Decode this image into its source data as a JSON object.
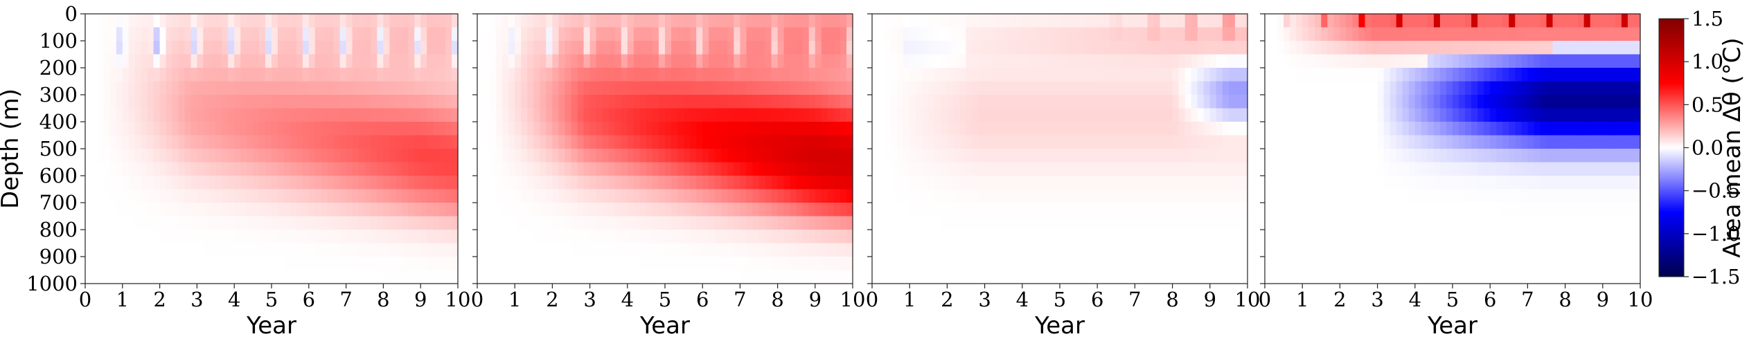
{
  "chart_data": {
    "type": "heatmap",
    "panels": [
      {
        "pattern": "weak-warm-deepening",
        "x_ticks": [
          "0",
          "1",
          "2",
          "3",
          "4",
          "5",
          "6",
          "7",
          "8",
          "9",
          "10"
        ],
        "xlabel": "Year",
        "ylabel": "Depth (m)",
        "y_ticks": [
          "0",
          "100",
          "200",
          "300",
          "400",
          "500",
          "600",
          "700",
          "800",
          "900",
          "1000"
        ],
        "xlim": [
          0,
          10
        ],
        "ylim": [
          0,
          1000
        ],
        "summary_values": {
          "max_warming_C": 0.55,
          "surface_cold_lobes_C": -0.25
        }
      },
      {
        "pattern": "strong-warm-deepening",
        "x_ticks": [
          "0",
          "1",
          "2",
          "3",
          "4",
          "5",
          "6",
          "7",
          "8",
          "9",
          "10"
        ],
        "xlabel": "Year",
        "ylabel": "",
        "y_ticks": [],
        "xlim": [
          0,
          10
        ],
        "ylim": [
          0,
          1000
        ],
        "summary_values": {
          "max_warming_C": 1.0,
          "surface_cold_lobes_C": -0.2
        }
      },
      {
        "pattern": "weak-mixed",
        "x_ticks": [
          "0",
          "1",
          "2",
          "3",
          "4",
          "5",
          "6",
          "7",
          "8",
          "9",
          "10"
        ],
        "xlabel": "Year",
        "ylabel": "",
        "y_ticks": [],
        "xlim": [
          0,
          10
        ],
        "ylim": [
          0,
          1000
        ],
        "summary_values": {
          "max_warming_C": 0.4,
          "max_cooling_C": -0.4
        }
      },
      {
        "pattern": "surface-warm-subsurface-cold",
        "x_ticks": [
          "0",
          "1",
          "2",
          "3",
          "4",
          "5",
          "6",
          "7",
          "8",
          "9",
          "10"
        ],
        "xlabel": "Year",
        "ylabel": "",
        "y_ticks": [],
        "xlim": [
          0,
          10
        ],
        "ylim": [
          0,
          1000
        ],
        "summary_values": {
          "max_warming_C": 1.2,
          "max_cooling_C": -1.2
        }
      }
    ],
    "colorbar": {
      "label": "Area mean Δθ (°C)",
      "ticks": [
        "1.5",
        "1.0",
        "0.5",
        "0.0",
        "−0.5",
        "−1.0",
        "−1.5"
      ],
      "tick_values": [
        1.5,
        1.0,
        0.5,
        0.0,
        -0.5,
        -1.0,
        -1.5
      ],
      "range": [
        -1.5,
        1.5
      ],
      "colormap": "seismic",
      "colors": {
        "low": "#00004c",
        "mid": "#ffffff",
        "high": "#800000"
      }
    }
  }
}
